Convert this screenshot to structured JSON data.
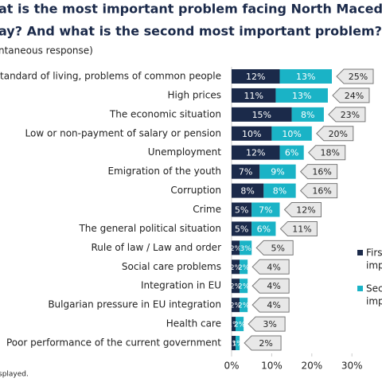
{
  "chart_data": {
    "type": "bar",
    "orientation": "horizontal",
    "stacked": true,
    "title": [
      "at is the most important problem facing North Macedoni",
      "ay? And what is the second most important problem?"
    ],
    "subtitle": "ntaneous response)",
    "footnote": "splayed.",
    "categories": [
      "standard of living, problems of common people",
      "High prices",
      "The economic situation",
      "Low or non-payment of salary or pension",
      "Unemployment",
      "Emigration of the youth",
      "Corruption",
      "Crime",
      "The general political situation",
      "Rule of law / Law and order",
      "Social care problems",
      "Integration in EU",
      "Bulgarian pressure in EU integration",
      "Health care",
      "Poor performance of the current government"
    ],
    "series": [
      {
        "name": [
          "Firs",
          "imp"
        ],
        "color": "#1b2a4a",
        "values": [
          12,
          11,
          15,
          10,
          12,
          7,
          8,
          5,
          5,
          2,
          2,
          2,
          2,
          1,
          1
        ],
        "value_labels": [
          "12%",
          "11%",
          "15%",
          "10%",
          "12%",
          "7%",
          "8%",
          "5%",
          "5%",
          "2%",
          "2%",
          "2%",
          "2%",
          "1%",
          "1%"
        ]
      },
      {
        "name": [
          "Sec",
          "imp"
        ],
        "color": "#1ab3c6",
        "values": [
          13,
          13,
          8,
          10,
          6,
          9,
          8,
          7,
          6,
          3,
          2,
          2,
          2,
          2,
          1
        ],
        "value_labels": [
          "13%",
          "13%",
          "8%",
          "10%",
          "6%",
          "9%",
          "8%",
          "7%",
          "6%",
          "3%",
          "2%",
          "2%",
          "2%",
          "2%",
          "1%"
        ]
      }
    ],
    "totals": [
      25,
      24,
      23,
      20,
      18,
      16,
      16,
      12,
      11,
      5,
      4,
      4,
      4,
      3,
      2
    ],
    "total_labels": [
      "25%",
      "24%",
      "23%",
      "20%",
      "18%",
      "16%",
      "16%",
      "12%",
      "11%",
      "5%",
      "4%",
      "4%",
      "4%",
      "3%",
      "2%"
    ],
    "xlim": [
      0,
      37.5
    ],
    "xticks": [
      {
        "value": 0,
        "label": "0%"
      },
      {
        "value": 10,
        "label": "10%"
      },
      {
        "value": 20,
        "label": "20%"
      },
      {
        "value": 30,
        "label": "30%"
      }
    ]
  }
}
